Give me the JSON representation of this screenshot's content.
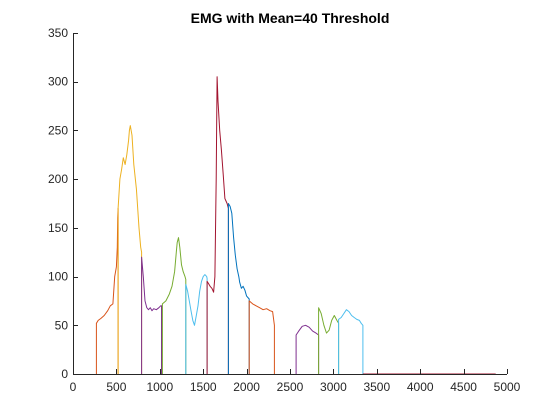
{
  "chart_data": {
    "type": "line",
    "title": "EMG with Mean=40 Threshold",
    "xlabel": "",
    "ylabel": "",
    "xlim": [
      0,
      5000
    ],
    "ylim": [
      0,
      350
    ],
    "x_ticks": [
      0,
      500,
      1000,
      1500,
      2000,
      2500,
      3000,
      3500,
      4000,
      4500,
      5000
    ],
    "y_ticks": [
      0,
      50,
      100,
      150,
      200,
      250,
      300,
      350
    ],
    "grid": false,
    "legend": "none",
    "series": [
      {
        "color": "#D95319",
        "x": [
          270,
          270,
          290,
          320,
          360,
          400,
          430,
          460,
          480,
          500,
          510,
          515,
          520,
          520
        ],
        "y": [
          0,
          52,
          55,
          57,
          60,
          65,
          70,
          72,
          100,
          110,
          130,
          160,
          170,
          0
        ]
      },
      {
        "color": "#EDB120",
        "x": [
          520,
          520,
          540,
          560,
          580,
          600,
          620,
          640,
          650,
          660,
          680,
          700,
          730,
          760,
          780,
          790,
          790
        ],
        "y": [
          0,
          170,
          200,
          210,
          222,
          215,
          225,
          240,
          250,
          255,
          245,
          215,
          190,
          150,
          130,
          125,
          0
        ]
      },
      {
        "color": "#7E2F8E",
        "x": [
          790,
          790,
          810,
          830,
          850,
          870,
          890,
          910,
          930,
          960,
          990,
          1010,
          1020,
          1020
        ],
        "y": [
          0,
          120,
          100,
          75,
          68,
          66,
          68,
          65,
          67,
          66,
          68,
          70,
          70,
          0
        ]
      },
      {
        "color": "#77AC30",
        "x": [
          1030,
          1030,
          1070,
          1110,
          1140,
          1170,
          1190,
          1200,
          1215,
          1230,
          1250,
          1270,
          1290,
          1300,
          1300
        ],
        "y": [
          0,
          72,
          75,
          82,
          90,
          105,
          125,
          135,
          140,
          130,
          112,
          105,
          100,
          97,
          0
        ]
      },
      {
        "color": "#4DBEEE",
        "x": [
          1300,
          1300,
          1320,
          1340,
          1360,
          1380,
          1400,
          1420,
          1440,
          1460,
          1480,
          1500,
          1520,
          1540,
          1545,
          1545
        ],
        "y": [
          0,
          92,
          85,
          75,
          65,
          55,
          50,
          60,
          70,
          85,
          95,
          100,
          102,
          100,
          98,
          0
        ]
      },
      {
        "color": "#A2142F",
        "x": [
          1545,
          1545,
          1560,
          1580,
          1600,
          1620,
          1635,
          1645,
          1650,
          1655,
          1660,
          1670,
          1690,
          1710,
          1730,
          1750,
          1775,
          1790,
          1790
        ],
        "y": [
          0,
          95,
          93,
          90,
          88,
          84,
          100,
          170,
          200,
          260,
          305,
          280,
          250,
          230,
          205,
          180,
          175,
          170,
          0
        ]
      },
      {
        "color": "#0072BD",
        "x": [
          1790,
          1790,
          1810,
          1830,
          1850,
          1870,
          1890,
          1910,
          1920,
          1940,
          1960,
          1980,
          2000,
          2020,
          2030,
          2030
        ],
        "y": [
          0,
          175,
          172,
          165,
          140,
          122,
          108,
          100,
          94,
          88,
          90,
          86,
          80,
          78,
          77,
          0
        ]
      },
      {
        "color": "#D95319",
        "x": [
          2030,
          2030,
          2070,
          2110,
          2150,
          2190,
          2230,
          2270,
          2300,
          2320,
          2320
        ],
        "y": [
          0,
          75,
          72,
          70,
          68,
          66,
          67,
          65,
          64,
          50,
          0
        ]
      },
      {
        "color": "#7E2F8E",
        "x": [
          2570,
          2570,
          2600,
          2640,
          2680,
          2720,
          2760,
          2800,
          2830,
          2830
        ],
        "y": [
          0,
          40,
          44,
          49,
          50,
          48,
          44,
          42,
          40,
          0
        ]
      },
      {
        "color": "#77AC30",
        "x": [
          2830,
          2830,
          2860,
          2890,
          2920,
          2950,
          2980,
          3010,
          3040,
          3060,
          3060
        ],
        "y": [
          0,
          68,
          62,
          50,
          42,
          45,
          55,
          60,
          55,
          52,
          0
        ]
      },
      {
        "color": "#4DBEEE",
        "x": [
          3060,
          3060,
          3090,
          3120,
          3150,
          3180,
          3210,
          3240,
          3270,
          3300,
          3320,
          3340,
          3340
        ],
        "y": [
          0,
          56,
          58,
          62,
          66,
          64,
          60,
          58,
          56,
          55,
          52,
          50,
          0
        ]
      },
      {
        "color": "#A2142F",
        "x": [
          3340,
          4870
        ],
        "y": [
          0,
          0
        ]
      }
    ]
  }
}
